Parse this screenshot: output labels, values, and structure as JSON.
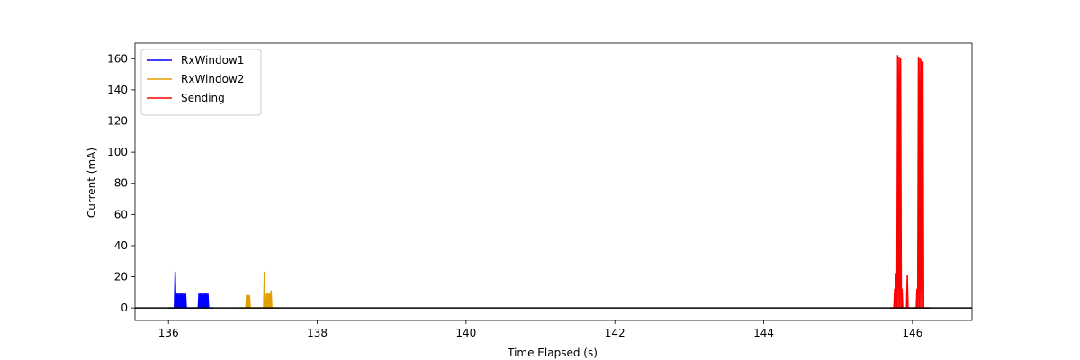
{
  "chart_data": {
    "type": "line",
    "title": "",
    "xlabel": "Time Elapsed (s)",
    "ylabel": "Current (mA)",
    "xlim": [
      135.55,
      146.8
    ],
    "ylim": [
      -8,
      170
    ],
    "xticks": [
      136,
      138,
      140,
      142,
      144,
      146
    ],
    "yticks": [
      0,
      20,
      40,
      60,
      80,
      100,
      120,
      140,
      160
    ],
    "grid": false,
    "legend_position": "top-left",
    "baseline": {
      "y": 0,
      "color": "#000000"
    },
    "series": [
      {
        "name": "RxWindow1",
        "color": "#0000ff",
        "x": [
          136.0,
          136.08,
          136.09,
          136.1,
          136.11,
          136.12,
          136.13,
          136.14,
          136.15,
          136.16,
          136.17,
          136.18,
          136.19,
          136.2,
          136.21,
          136.22,
          136.23,
          136.24,
          136.25,
          136.26,
          136.27,
          136.28,
          136.29,
          136.3,
          136.31,
          136.32,
          136.33,
          136.34,
          136.35,
          136.36,
          136.37,
          136.38,
          136.39,
          136.4,
          136.41,
          136.42,
          136.43,
          136.44,
          136.45,
          136.46,
          136.47,
          136.48,
          136.49,
          136.5,
          136.51,
          136.52,
          136.53,
          136.54,
          136.55,
          136.6
        ],
        "y": [
          0,
          0,
          23,
          0,
          9,
          0,
          9,
          0,
          9,
          0,
          9,
          0,
          9,
          0,
          9,
          0,
          9,
          0,
          0,
          0,
          0,
          0,
          0,
          0,
          0,
          0,
          0,
          0,
          0,
          0,
          0,
          0,
          0,
          0,
          9,
          0,
          9,
          0,
          9,
          0,
          9,
          0,
          9,
          0,
          9,
          0,
          9,
          0,
          0,
          0
        ]
      },
      {
        "name": "RxWindow2",
        "color": "#e0a000",
        "x": [
          136.95,
          137.0,
          137.04,
          137.05,
          137.06,
          137.07,
          137.08,
          137.09,
          137.1,
          137.11,
          137.12,
          137.2,
          137.25,
          137.28,
          137.29,
          137.3,
          137.31,
          137.32,
          137.33,
          137.34,
          137.35,
          137.36,
          137.37,
          137.38,
          137.39,
          137.4,
          137.45,
          137.5
        ],
        "y": [
          0,
          0,
          0,
          8,
          0,
          8,
          0,
          8,
          0,
          0,
          0,
          0,
          0,
          0,
          23,
          0,
          0,
          9,
          0,
          9,
          0,
          9,
          0,
          11,
          0,
          0,
          0,
          0
        ]
      },
      {
        "name": "Sending",
        "color": "#ff0000",
        "x": [
          145.7,
          145.75,
          145.76,
          145.77,
          145.78,
          145.79,
          145.8,
          145.81,
          145.82,
          145.83,
          145.84,
          145.85,
          145.86,
          145.87,
          145.88,
          145.9,
          145.92,
          145.93,
          145.94,
          145.96,
          146.0,
          146.05,
          146.06,
          146.07,
          146.08,
          146.09,
          146.1,
          146.11,
          146.12,
          146.13,
          146.14,
          146.15,
          146.16,
          146.17,
          146.2,
          146.25
        ],
        "y": [
          0,
          0,
          12,
          0,
          22,
          0,
          162,
          0,
          161,
          0,
          160,
          0,
          12,
          0,
          0,
          0,
          0,
          21,
          0,
          0,
          0,
          0,
          12,
          0,
          161,
          0,
          160,
          0,
          159,
          0,
          158,
          0,
          0,
          0,
          0,
          0
        ]
      }
    ]
  }
}
